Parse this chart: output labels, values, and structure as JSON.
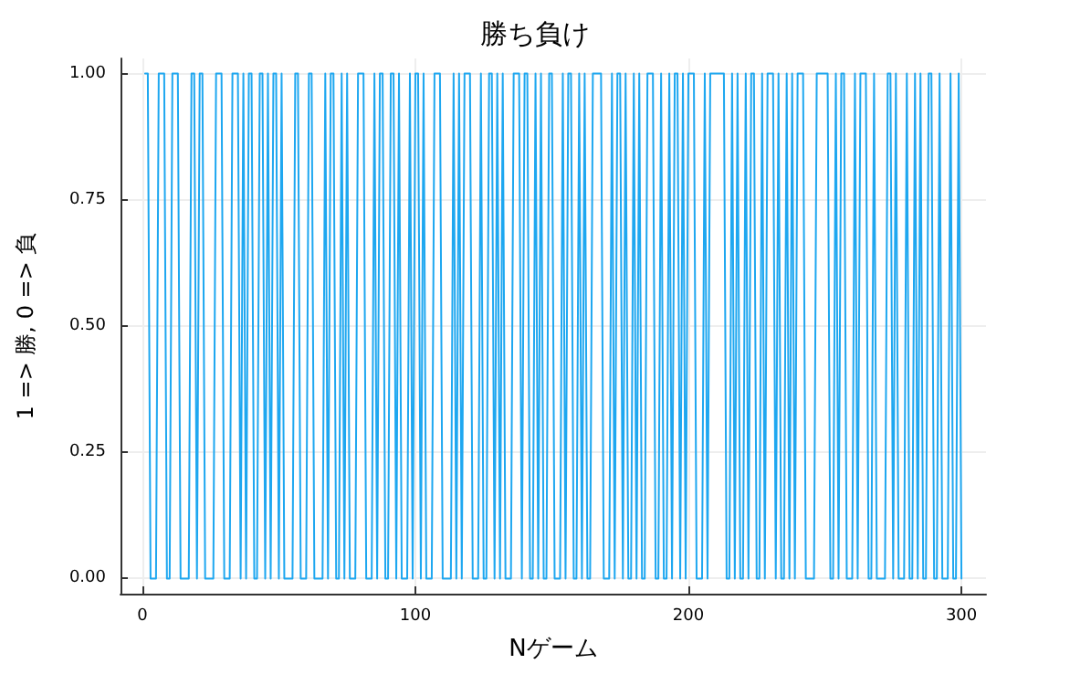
{
  "chart_data": {
    "type": "line",
    "title": "勝ち負け",
    "xlabel": "Nゲーム",
    "ylabel": "1 => 勝, 0 => 負",
    "xlim": [
      -8,
      309
    ],
    "xticks": [
      0,
      100,
      200,
      300
    ],
    "ylim": [
      -0.03,
      1.03
    ],
    "yticks": [
      {
        "value": 0,
        "label": "0.00"
      },
      {
        "value": 0.25,
        "label": "0.25"
      },
      {
        "value": 0.5,
        "label": "0.50"
      },
      {
        "value": 0.75,
        "label": "0.75"
      },
      {
        "value": 1,
        "label": "1.00"
      }
    ],
    "grid": true,
    "marker": "none",
    "line_style": "solid",
    "series": [
      {
        "color": "#1ea7f0",
        "x": [
          1,
          2,
          3,
          4,
          5,
          6,
          7,
          8,
          9,
          10,
          11,
          12,
          13,
          14,
          15,
          16,
          17,
          18,
          19,
          20,
          21,
          22,
          23,
          24,
          25,
          26,
          27,
          28,
          29,
          30,
          31,
          32,
          33,
          34,
          35,
          36,
          37,
          38,
          39,
          40,
          41,
          42,
          43,
          44,
          45,
          46,
          47,
          48,
          49,
          50,
          51,
          52,
          53,
          54,
          55,
          56,
          57,
          58,
          59,
          60,
          61,
          62,
          63,
          64,
          65,
          66,
          67,
          68,
          69,
          70,
          71,
          72,
          73,
          74,
          75,
          76,
          77,
          78,
          79,
          80,
          81,
          82,
          83,
          84,
          85,
          86,
          87,
          88,
          89,
          90,
          91,
          92,
          93,
          94,
          95,
          96,
          97,
          98,
          99,
          100,
          101,
          102,
          103,
          104,
          105,
          106,
          107,
          108,
          109,
          110,
          111,
          112,
          113,
          114,
          115,
          116,
          117,
          118,
          119,
          120,
          121,
          122,
          123,
          124,
          125,
          126,
          127,
          128,
          129,
          130,
          131,
          132,
          133,
          134,
          135,
          136,
          137,
          138,
          139,
          140,
          141,
          142,
          143,
          144,
          145,
          146,
          147,
          148,
          149,
          150,
          151,
          152,
          153,
          154,
          155,
          156,
          157,
          158,
          159,
          160,
          161,
          162,
          163,
          164,
          165,
          166,
          167,
          168,
          169,
          170,
          171,
          172,
          173,
          174,
          175,
          176,
          177,
          178,
          179,
          180,
          181,
          182,
          183,
          184,
          185,
          186,
          187,
          188,
          189,
          190,
          191,
          192,
          193,
          194,
          195,
          196,
          197,
          198,
          199,
          200,
          201,
          202,
          203,
          204,
          205,
          206,
          207,
          208,
          209,
          210,
          211,
          212,
          213,
          214,
          215,
          216,
          217,
          218,
          219,
          220,
          221,
          222,
          223,
          224,
          225,
          226,
          227,
          228,
          229,
          230,
          231,
          232,
          233,
          234,
          235,
          236,
          237,
          238,
          239,
          240,
          241,
          242,
          243,
          244,
          245,
          246,
          247,
          248,
          249,
          250,
          251,
          252,
          253,
          254,
          255,
          256,
          257,
          258,
          259,
          260,
          261,
          262,
          263,
          264,
          265,
          266,
          267,
          268,
          269,
          270,
          271,
          272,
          273,
          274,
          275,
          276,
          277,
          278,
          279,
          280,
          281,
          282,
          283,
          284,
          285,
          286,
          287,
          288,
          289,
          290,
          291,
          292,
          293,
          294,
          295,
          296,
          297,
          298,
          299,
          300
        ],
        "values": [
          1,
          1,
          0,
          0,
          0,
          1,
          1,
          1,
          0,
          0,
          1,
          1,
          1,
          0,
          0,
          0,
          0,
          1,
          1,
          0,
          1,
          1,
          0,
          0,
          0,
          0,
          1,
          1,
          1,
          0,
          0,
          0,
          1,
          1,
          1,
          0,
          1,
          0,
          1,
          1,
          0,
          0,
          1,
          1,
          0,
          1,
          0,
          1,
          1,
          0,
          1,
          0,
          0,
          0,
          0,
          1,
          1,
          0,
          0,
          0,
          1,
          1,
          0,
          0,
          0,
          0,
          1,
          0,
          1,
          1,
          0,
          0,
          1,
          0,
          1,
          0,
          0,
          0,
          1,
          1,
          1,
          0,
          0,
          0,
          1,
          0,
          1,
          1,
          0,
          0,
          1,
          1,
          0,
          1,
          0,
          0,
          0,
          1,
          0,
          1,
          1,
          0,
          1,
          0,
          0,
          0,
          1,
          1,
          1,
          0,
          0,
          0,
          0,
          1,
          0,
          1,
          0,
          1,
          1,
          1,
          0,
          0,
          0,
          1,
          0,
          0,
          1,
          1,
          0,
          1,
          0,
          1,
          0,
          0,
          0,
          1,
          1,
          1,
          0,
          1,
          1,
          0,
          0,
          1,
          0,
          1,
          0,
          0,
          1,
          1,
          0,
          0,
          0,
          1,
          0,
          1,
          1,
          0,
          0,
          1,
          0,
          1,
          0,
          0,
          1,
          1,
          1,
          1,
          0,
          0,
          0,
          1,
          0,
          1,
          1,
          0,
          1,
          0,
          0,
          1,
          0,
          1,
          0,
          0,
          1,
          1,
          1,
          0,
          0,
          1,
          0,
          0,
          1,
          0,
          1,
          1,
          0,
          1,
          0,
          1,
          1,
          1,
          0,
          0,
          0,
          1,
          0,
          1,
          1,
          1,
          1,
          1,
          1,
          0,
          0,
          1,
          0,
          1,
          0,
          0,
          1,
          0,
          1,
          1,
          0,
          0,
          1,
          0,
          1,
          1,
          1,
          0,
          1,
          0,
          0,
          1,
          0,
          1,
          0,
          1,
          1,
          1,
          0,
          0,
          0,
          0,
          1,
          1,
          1,
          1,
          1,
          0,
          0,
          1,
          0,
          1,
          1,
          0,
          0,
          0,
          1,
          0,
          1,
          1,
          1,
          0,
          0,
          1,
          0,
          0,
          0,
          0,
          1,
          1,
          0,
          1,
          0,
          0,
          0,
          1,
          0,
          0,
          1,
          0,
          1,
          0,
          0,
          1,
          1,
          0,
          0,
          1,
          0,
          0,
          0,
          1,
          0,
          0,
          1,
          0
        ]
      }
    ]
  }
}
